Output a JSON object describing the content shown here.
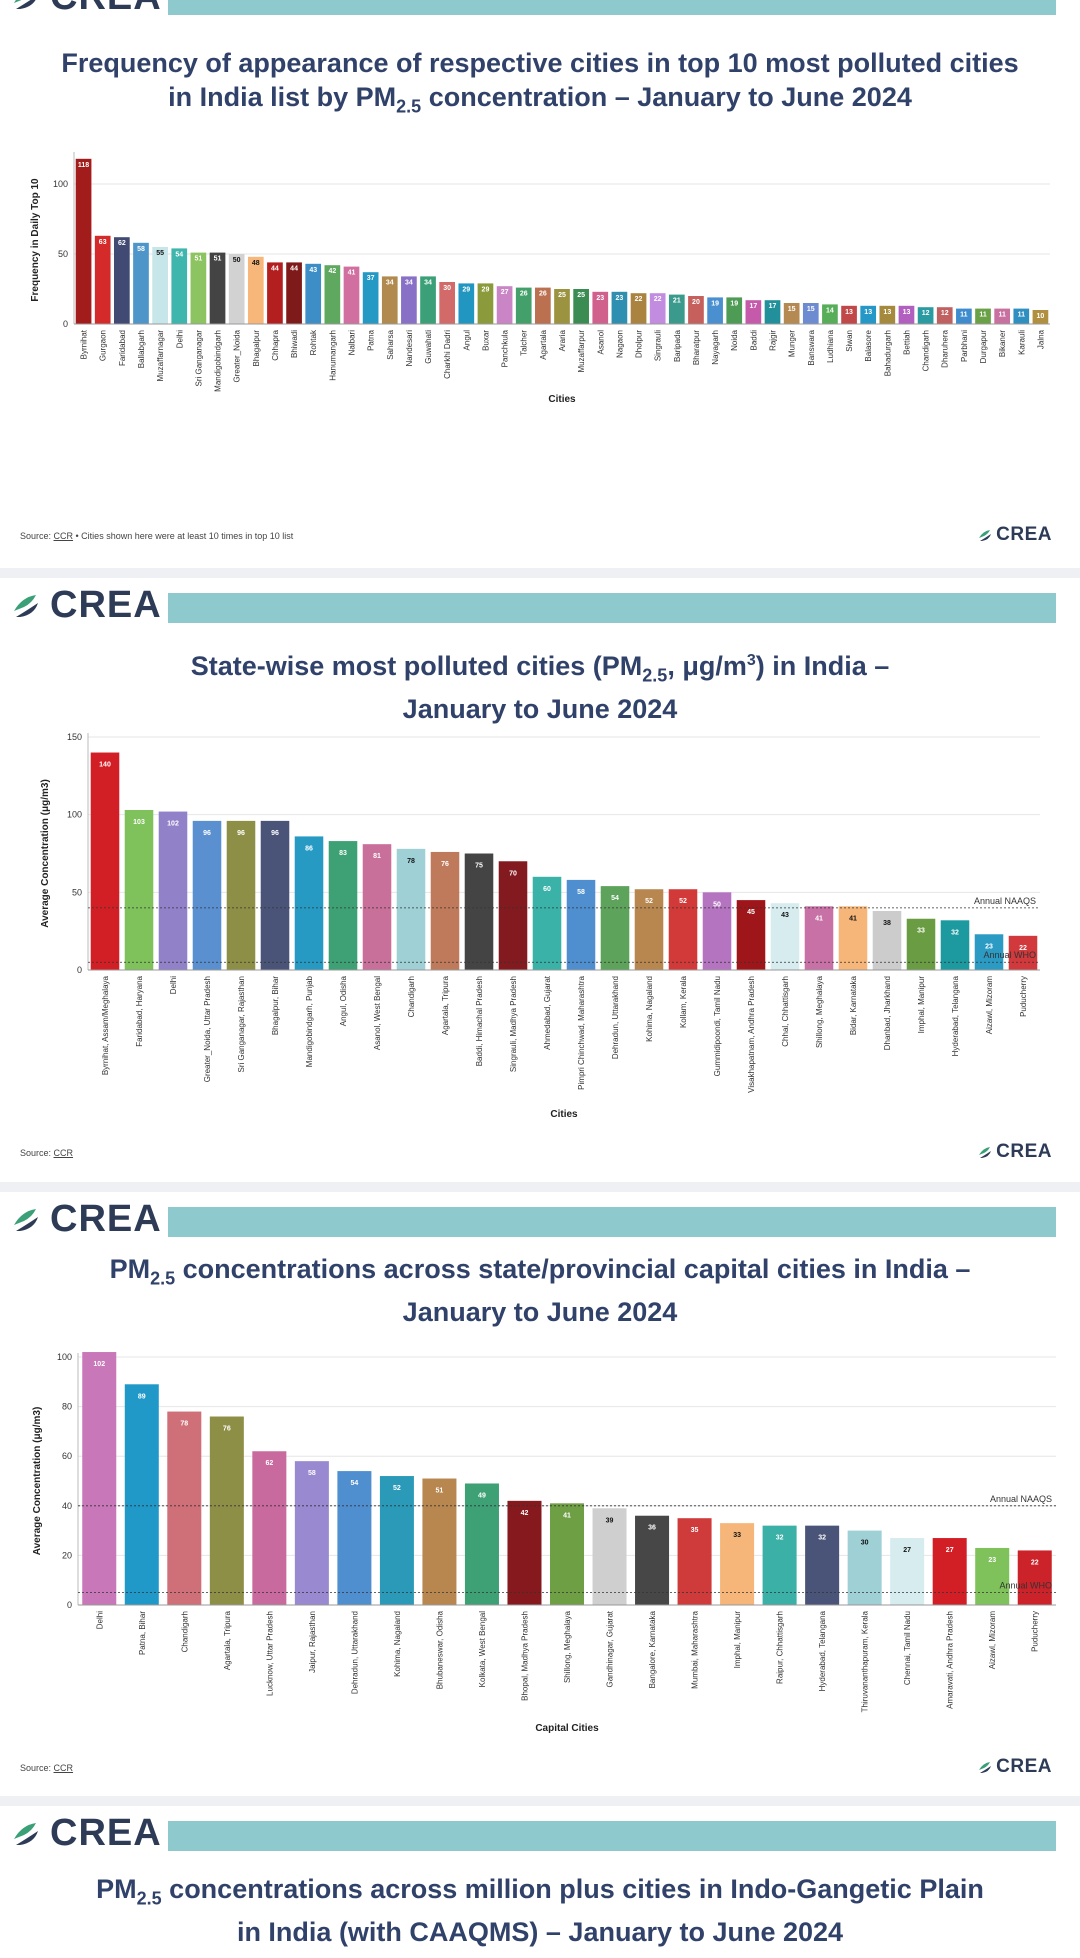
{
  "brand": {
    "name": "CREA",
    "color": "#2d3b57",
    "accent": "#8ec9ce"
  },
  "charts": [
    {
      "title_line1": "Frequency of appearance of respective cities in top 10 most polluted cities",
      "title_line2_pre": "in India list by PM",
      "title_line2_sub": "2.5",
      "title_line2_post": " concentration – January to June 2024",
      "source_prefix": "Source: ",
      "source_link": "CCR",
      "source_suffix": " • Cities shown here were at least 10 times in top 10 list"
    },
    {
      "title_line1_pre": "State-wise most polluted cities (PM",
      "title_line1_sub": "2.5",
      "title_line1_mid": ", μg/m",
      "title_line1_sup": "3",
      "title_line1_post": ") in India –",
      "title_line2": "January to June 2024",
      "source_prefix": "Source: ",
      "source_link": "CCR"
    },
    {
      "title_line1_pre": "PM",
      "title_line1_sub": "2.5",
      "title_line1_post": " concentrations across state/provincial capital cities in India –",
      "title_line2": "January to June 2024",
      "source_prefix": "Source: ",
      "source_link": "CCR"
    },
    {
      "title_line1_pre": "PM",
      "title_line1_sub": "2.5",
      "title_line1_post": " concentrations across million plus cities in Indo-Gangetic Plain",
      "title_line2": "in India (with CAAQMS) – January to June 2024"
    }
  ],
  "chart_data": [
    {
      "type": "bar",
      "title": "Frequency of appearance of respective cities in top 10 most polluted cities in India list by PM2.5 concentration – January to June 2024",
      "xlabel": "Cities",
      "ylabel": "Frequency in Daily Top 10",
      "ylim": [
        0,
        120
      ],
      "yticks": [
        0,
        50,
        100
      ],
      "grid": true,
      "categories": [
        "Byrnihat",
        "Gurgaon",
        "Faridabad",
        "Ballabgarh",
        "Muzaffarnagar",
        "Delhi",
        "Sri Ganganagar",
        "Mandigobindgarh",
        "Greater_Noida",
        "Bhagalpur",
        "Chhapra",
        "Bhiwadi",
        "Rohtak",
        "Hanumangarh",
        "Nalbari",
        "Patna",
        "Saharsa",
        "Nandesari",
        "Guwahati",
        "Charkhi Dadri",
        "Angul",
        "Buxar",
        "Panchkula",
        "Talcher",
        "Agartala",
        "Araria",
        "Muzaffarpur",
        "Asanol",
        "Nagaon",
        "Dholpur",
        "Singrauli",
        "Baripada",
        "Bharatpur",
        "Nayagarh",
        "Noida",
        "Baddi",
        "Rajgir",
        "Munger",
        "Banswara",
        "Ludhiana",
        "Siwan",
        "Balasore",
        "Bahadurgarh",
        "Bettiah",
        "Chandigarh",
        "Dharuhera",
        "Parbhani",
        "Durgapur",
        "Bikaner",
        "Karauli",
        "Jalna"
      ],
      "values": [
        118,
        63,
        62,
        58,
        55,
        54,
        51,
        51,
        50,
        48,
        44,
        44,
        43,
        42,
        41,
        37,
        34,
        34,
        34,
        30,
        29,
        29,
        27,
        26,
        26,
        25,
        25,
        23,
        23,
        22,
        22,
        21,
        20,
        19,
        19,
        17,
        17,
        15,
        15,
        14,
        13,
        13,
        13,
        13,
        12,
        12,
        11,
        11,
        11,
        11,
        10
      ],
      "colors": [
        "#a31c1c",
        "#d42a2a",
        "#404a72",
        "#4e96c9",
        "#c7e6ea",
        "#3fb6ad",
        "#8bc460",
        "#444444",
        "#d2d2d2",
        "#f7b77a",
        "#b31f1f",
        "#7f1a1a",
        "#3d8dc7",
        "#5ea860",
        "#d170a0",
        "#2399c4",
        "#b08a4f",
        "#8870c7",
        "#3ba078",
        "#d26a6a",
        "#2196c0",
        "#8b9a3a",
        "#c985c5",
        "#44a06a",
        "#bb7050",
        "#9b9340",
        "#3b8c53",
        "#d0608c",
        "#2e8fb0",
        "#aa8340",
        "#c28ce0",
        "#3a9b8c",
        "#c6605c",
        "#4a90d0",
        "#4e9b55",
        "#c65aaa",
        "#21909a",
        "#b58a52",
        "#6d8bd0",
        "#58ad58",
        "#c04848",
        "#2598c7",
        "#a58a3e",
        "#b160c0",
        "#2a9ba0",
        "#c06060",
        "#3e8cce",
        "#6aa046",
        "#c870a0",
        "#2f8fc0",
        "#b09040"
      ]
    },
    {
      "type": "bar",
      "title": "State-wise most polluted cities (PM2.5, μg/m3) in India – January to June 2024",
      "xlabel": "Cities",
      "ylabel": "Average Concentration (μg/m3)",
      "ylim": [
        0,
        150
      ],
      "yticks": [
        0,
        50,
        100,
        150
      ],
      "reference_lines": [
        {
          "label": "Annual NAAQS",
          "value": 40
        },
        {
          "label": "Annual WHO",
          "value": 5
        }
      ],
      "categories": [
        "Byrnihat, Assam/Meghalaya",
        "Faridabad, Haryana",
        "Delhi",
        "Greater_Noida, Uttar Pradesh",
        "Sri Ganganagar, Rajasthan",
        "Bhagalpur, Bihar",
        "Mandigobindgarh, Punjab",
        "Angul, Odisha",
        "Asanol, West Bengal",
        "Chandigarh",
        "Agartala, Tripura",
        "Baddi, Himachal Pradesh",
        "Singrauli, Madhya Pradesh",
        "Ahmedabad, Gujarat",
        "Pimpri Chinchwad, Maharashtra",
        "Dehradun, Uttarakhand",
        "Kohima, Nagaland",
        "Kollam, Kerala",
        "Gummidipoondi, Tamil Nadu",
        "Visakhapatnam, Andhra Pradesh",
        "Chhal, Chhattisgarh",
        "Shillong, Meghalaya",
        "Bidar, Karnataka",
        "Dhanbad, Jharkhand",
        "Imphal, Manipur",
        "Hyderabad, Telangana",
        "Aizawl, Mizoram",
        "Puducherry"
      ],
      "values": [
        140,
        103,
        102,
        96,
        96,
        96,
        86,
        83,
        81,
        78,
        76,
        75,
        70,
        60,
        58,
        54,
        52,
        52,
        50,
        45,
        43,
        41,
        41,
        38,
        33,
        32,
        23,
        22
      ],
      "colors": [
        "#d21f26",
        "#7fc15a",
        "#9181c9",
        "#5a8fd0",
        "#8e8f46",
        "#4a5478",
        "#279ac4",
        "#3da175",
        "#c86f9a",
        "#9fd0d6",
        "#bf7a5c",
        "#444444",
        "#821a1f",
        "#3ab2a8",
        "#4f8fd0",
        "#5da35c",
        "#b7874f",
        "#d23a3a",
        "#b474c0",
        "#9f161a",
        "#d6ecef",
        "#c771a6",
        "#f6b579",
        "#cccccc",
        "#6a9d43",
        "#1d9a9f",
        "#2b9bc4",
        "#d1393c"
      ]
    },
    {
      "type": "bar",
      "title": "PM2.5 concentrations across state/provincial capital cities in India – January to June 2024",
      "xlabel": "Capital Cities",
      "ylabel": "Average Concentration (μg/m3)",
      "ylim": [
        0,
        100
      ],
      "yticks": [
        0,
        20,
        40,
        60,
        80,
        100
      ],
      "reference_lines": [
        {
          "label": "Annual NAAQS",
          "value": 40
        },
        {
          "label": "Annual WHO",
          "value": 5
        }
      ],
      "categories": [
        "Delhi",
        "Patna, Bihar",
        "Chandigarh",
        "Agartala, Tripura",
        "Lucknow, Uttar Pradesh",
        "Jaipur, Rajasthan",
        "Dehradun, Uttarakhand",
        "Kohima, Nagaland",
        "Bhubaneswar, Odisha",
        "Kolkata, West Bengal",
        "Bhopal, Madhya Pradesh",
        "Shillong, Meghalaya",
        "Gandhinagar, Gujarat",
        "Bangalore, Karnataka",
        "Mumbai, Maharashtra",
        "Imphal, Manipur",
        "Raipur, Chhattisgarh",
        "Hyderabad, Telangana",
        "Thiruvananthapuram, Kerala",
        "Chennai, Tamil Nadu",
        "Amaravati, Andhra Pradesh",
        "Aizawl, Mizoram",
        "Puducherry"
      ],
      "values": [
        102,
        89,
        78,
        76,
        62,
        58,
        54,
        52,
        51,
        49,
        42,
        41,
        39,
        36,
        35,
        33,
        32,
        32,
        30,
        27,
        27,
        23,
        22
      ],
      "colors": [
        "#c877b8",
        "#2199c8",
        "#cf6f78",
        "#8e8f46",
        "#c96a9e",
        "#9889d0",
        "#4f8fd0",
        "#2a9ab8",
        "#b7874f",
        "#3da175",
        "#86191d",
        "#6f9f45",
        "#cfcfcf",
        "#474747",
        "#cf3b3b",
        "#f6b579",
        "#3bb0a6",
        "#4a5478",
        "#9fd0d6",
        "#d6ecef",
        "#d21f26",
        "#7fc15a",
        "#cc2229"
      ]
    }
  ]
}
